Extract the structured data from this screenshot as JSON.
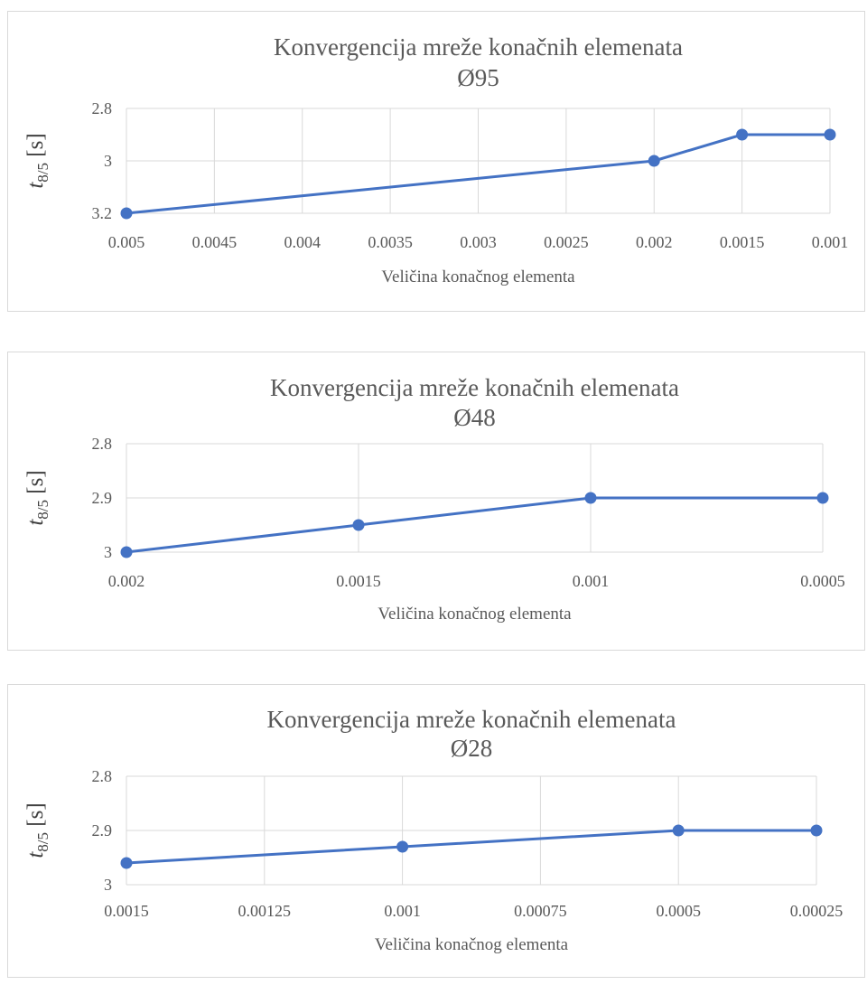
{
  "colors": {
    "series": "#4472C4",
    "grid": "#d9d9d9",
    "text": "#595959"
  },
  "chart_data": [
    {
      "type": "line",
      "title": "Konvergencija mreže konačnih elemenata",
      "subtitle": "Ø95",
      "xlabel": "Veličina konačnog elementa",
      "ylabel": {
        "main": "t",
        "sub": "8/5",
        "unit": "[s]"
      },
      "x_reversed": true,
      "y_reversed": true,
      "xlim": [
        0.005,
        0.001
      ],
      "ylim": [
        2.8,
        3.2
      ],
      "x_ticks": [
        "0.005",
        "0.0045",
        "0.004",
        "0.0035",
        "0.003",
        "0.0025",
        "0.002",
        "0.0015",
        "0.001"
      ],
      "y_ticks": [
        "2.8",
        "3",
        "3.2"
      ],
      "grid": true,
      "series": [
        {
          "points": [
            [
              0.005,
              3.2
            ],
            [
              0.002,
              3.0
            ],
            [
              0.0015,
              2.9
            ],
            [
              0.001,
              2.9
            ]
          ]
        }
      ]
    },
    {
      "type": "line",
      "title": "Konvergencija mreže konačnih elemenata",
      "subtitle": "Ø48",
      "xlabel": "Veličina konačnog elementa",
      "ylabel": {
        "main": "t",
        "sub": "8/5",
        "unit": "[s]"
      },
      "x_reversed": true,
      "y_reversed": true,
      "xlim": [
        0.002,
        0.0005
      ],
      "ylim": [
        2.8,
        3.0
      ],
      "x_ticks": [
        "0.002",
        "0.0015",
        "0.001",
        "0.0005"
      ],
      "y_ticks": [
        "2.8",
        "2.9",
        "3"
      ],
      "grid": true,
      "series": [
        {
          "points": [
            [
              0.002,
              3.0
            ],
            [
              0.0015,
              2.95
            ],
            [
              0.001,
              2.9
            ],
            [
              0.0005,
              2.9
            ]
          ]
        }
      ]
    },
    {
      "type": "line",
      "title": "Konvergencija mreže konačnih elemenata",
      "subtitle": "Ø28",
      "xlabel": "Veličina konačnog elementa",
      "ylabel": {
        "main": "t",
        "sub": "8/5",
        "unit": "[s]"
      },
      "x_reversed": true,
      "y_reversed": true,
      "xlim": [
        0.0015,
        0.00025
      ],
      "ylim": [
        2.8,
        3.0
      ],
      "x_ticks": [
        "0.0015",
        "0.00125",
        "0.001",
        "0.00075",
        "0.0005",
        "0.00025"
      ],
      "y_ticks": [
        "2.8",
        "2.9",
        "3"
      ],
      "grid": true,
      "series": [
        {
          "points": [
            [
              0.0015,
              2.96
            ],
            [
              0.001,
              2.93
            ],
            [
              0.0005,
              2.9
            ],
            [
              0.00025,
              2.9
            ]
          ]
        }
      ]
    }
  ]
}
